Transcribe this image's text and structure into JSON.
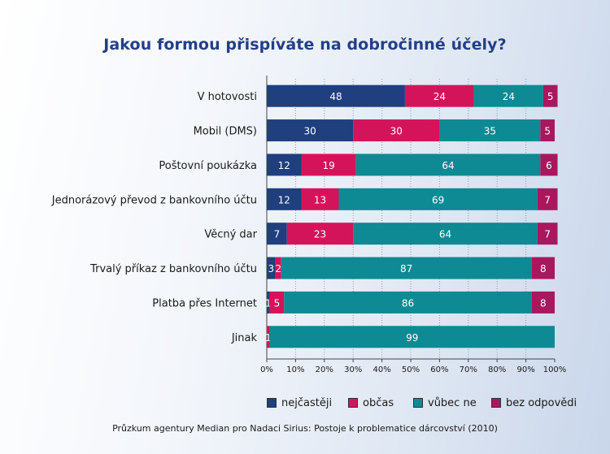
{
  "chart_data": {
    "type": "bar",
    "orientation": "horizontal",
    "stacked": true,
    "title": "Jakou formou přispíváte na dobročinné účely?",
    "categories": [
      "V hotovosti",
      "Mobil (DMS)",
      "Poštovní poukázka",
      "Jednorázový převod z bankovního účtu",
      "Věcný dar",
      "Trvalý příkaz z bankovního účtu",
      "Platba přes Internet",
      "Jinak"
    ],
    "series": [
      {
        "name": "nejčastěji",
        "color": "#1f3f7e",
        "values": [
          48,
          30,
          12,
          12,
          7,
          3,
          1,
          0
        ]
      },
      {
        "name": "občas",
        "color": "#d4145a",
        "values": [
          24,
          30,
          19,
          13,
          23,
          2,
          5,
          1
        ]
      },
      {
        "name": "vůbec ne",
        "color": "#0d8a93",
        "values": [
          24,
          35,
          64,
          69,
          64,
          87,
          86,
          99
        ]
      },
      {
        "name": "bez odpovědi",
        "color": "#a8185e",
        "values": [
          5,
          5,
          6,
          7,
          7,
          8,
          8,
          0
        ]
      }
    ],
    "xticks": [
      "0%",
      "10%",
      "20%",
      "30%",
      "40%",
      "50%",
      "60%",
      "70%",
      "80%",
      "90%",
      "100%"
    ],
    "xlim": [
      0,
      100
    ],
    "grid": "vertical dotted",
    "legend_position": "bottom",
    "source": "Průzkum agentury Median pro Nadaci Sirius: Postoje k problematice dárcovství (2010)"
  }
}
